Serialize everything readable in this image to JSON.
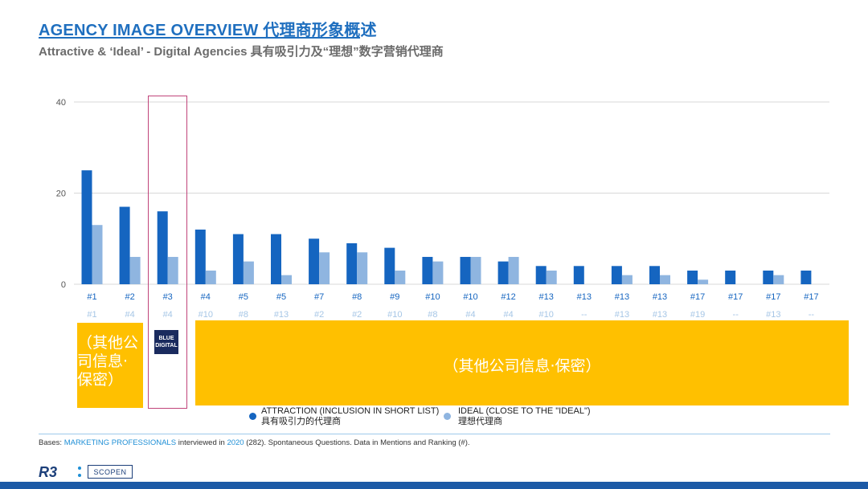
{
  "header": {
    "title": "AGENCY IMAGE OVERVIEW 代理商形象概述",
    "subtitle": "Attractive & ‘Ideal’ - Digital Agencies 具有吸引力及“理想”数字营销代理商"
  },
  "confidential": {
    "left_text": "（其他公司信息·保密）",
    "right_text": "（其他公司信息·保密）"
  },
  "highlight_logo_text": "BLUE DIGITAL",
  "legend": {
    "attraction_en": "ATTRACTION (INCLUSION IN SHORT LIST)",
    "attraction_zh": "具有吸引力的代理商",
    "ideal_en": "IDEAL (CLOSE TO THE \"IDEAL\")",
    "ideal_zh": "理想代理商"
  },
  "bases": {
    "prefix": "Bases: ",
    "group": "MARKETING PROFESSIONALS",
    "mid": " interviewed in ",
    "year": "2020",
    "rest": " (282). Spontaneous Questions. Data in Mentions and Ranking (#)."
  },
  "footer": {
    "brand": "R3",
    "partner": "SCOPEN"
  },
  "colors": {
    "attraction": "#1565c0",
    "ideal": "#8fb5e0",
    "title": "#1f6fbf",
    "confidential": "#ffc000",
    "highlight": "#c0447a"
  },
  "chart_data": {
    "type": "bar",
    "ylim": [
      0,
      40
    ],
    "yticks": [
      0,
      20,
      40
    ],
    "grid": true,
    "highlight_index": 2,
    "categories": [
      "#1",
      "#2",
      "#3",
      "#4",
      "#5",
      "#5",
      "#7",
      "#8",
      "#9",
      "#10",
      "#10",
      "#12",
      "#13",
      "#13",
      "#13",
      "#13",
      "#17",
      "#17",
      "#17",
      "#17"
    ],
    "ideal_ranks": [
      "#1",
      "#4",
      "#4",
      "#10",
      "#8",
      "#13",
      "#2",
      "#2",
      "#10",
      "#8",
      "#4",
      "#4",
      "#10",
      "--",
      "#13",
      "#13",
      "#19",
      "--",
      "#13",
      "--"
    ],
    "series": [
      {
        "name": "ATTRACTION (INCLUSION IN SHORT LIST)",
        "values": [
          25,
          17,
          16,
          12,
          11,
          11,
          10,
          9,
          8,
          6,
          6,
          5,
          4,
          4,
          4,
          4,
          3,
          3,
          3,
          3
        ]
      },
      {
        "name": "IDEAL (CLOSE TO THE \"IDEAL\")",
        "values": [
          13,
          6,
          6,
          3,
          5,
          2,
          7,
          7,
          3,
          5,
          6,
          6,
          3,
          0,
          2,
          2,
          1,
          0,
          2,
          0
        ]
      }
    ]
  }
}
